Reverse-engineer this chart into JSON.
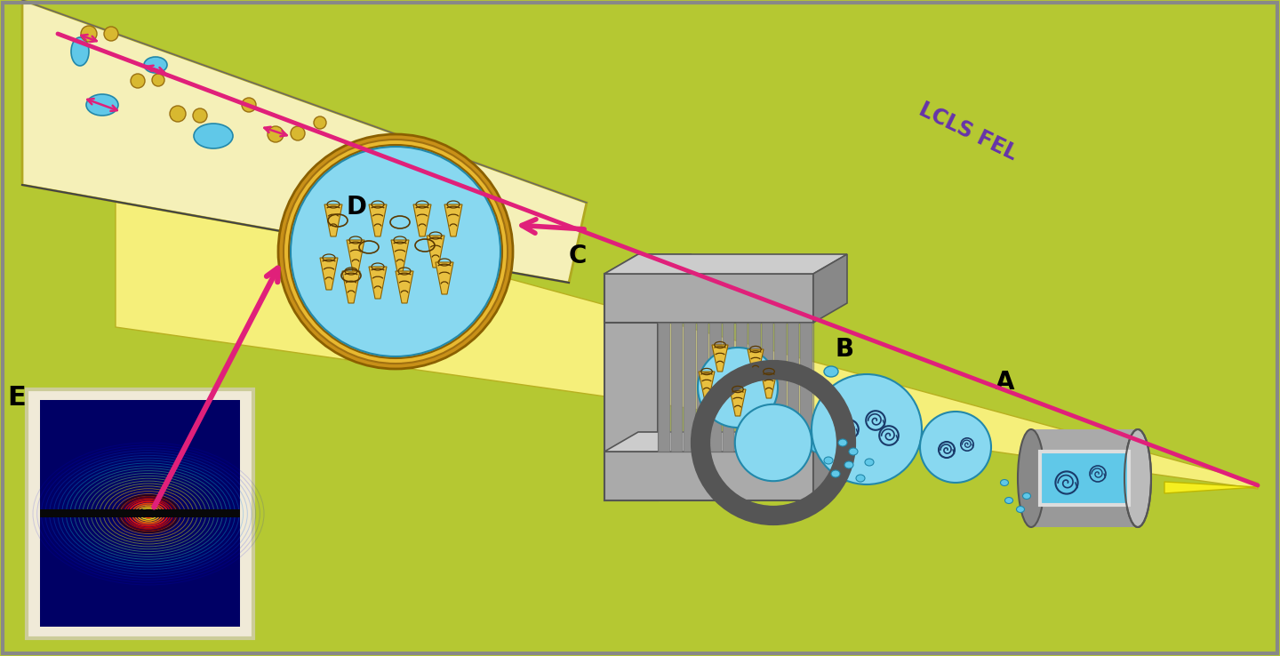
{
  "bg_green": "#b5c832",
  "bg_yellow_light": "#f5f0b0",
  "cyan_color": "#5cc8e8",
  "cyan_light": "#a0ddf0",
  "gold_color": "#d4a820",
  "gold_ring": "#c8961a",
  "pink_color": "#e0207a",
  "dark_blue": "#000070",
  "gray_dark": "#666666",
  "gray_mid": "#999999",
  "gray_light": "#bbbbbb",
  "label_A": "A",
  "label_B": "B",
  "label_C": "C",
  "label_D": "D",
  "label_E": "E",
  "lcls_label": "LCLS FEL",
  "label_fontsize": 20,
  "lcls_color": "#6633aa"
}
